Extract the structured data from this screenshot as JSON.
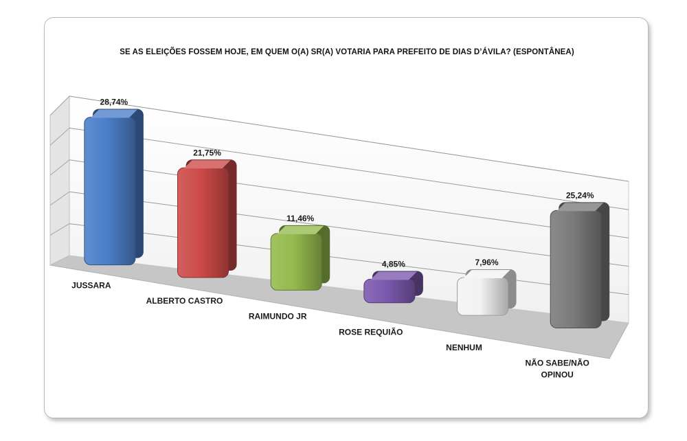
{
  "chart_data": {
    "type": "bar",
    "title": "SE AS ELEIÇÕES FOSSEM HOJE, EM QUEM O(A) SR(A) VOTARIA PARA PREFEITO DE DIAS D’ÁVILA? (ESPONTÂNEA)",
    "categories": [
      "JUSSARA",
      "ALBERTO CASTRO",
      "RAIMUNDO JR",
      "ROSE REQUIÃO",
      "NENHUM",
      "NÃO SABE/NÃO OPINOU"
    ],
    "values": [
      28.74,
      21.75,
      11.46,
      4.85,
      7.96,
      25.24
    ],
    "value_labels": [
      "28,74%",
      "21,75%",
      "11,46%",
      "4,85%",
      "7,96%",
      "25,24%"
    ],
    "colors": [
      "#4a7ec8",
      "#cc4a48",
      "#94ba4e",
      "#7a58ad",
      "#f2f2f2",
      "#7a7a7a"
    ],
    "ylim": [
      0,
      35
    ],
    "grid": true,
    "legend": "none",
    "style": "3d-perspective"
  }
}
